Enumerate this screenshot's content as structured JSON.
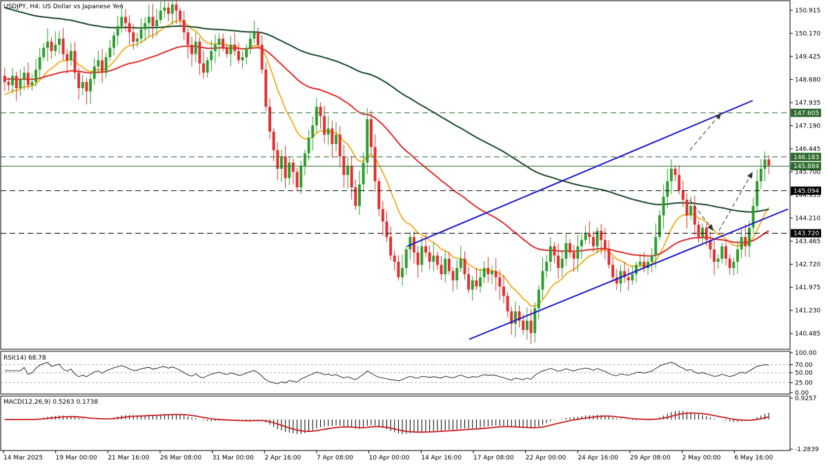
{
  "header": {
    "main_label": "USDJPY, H4:  US Dollar vs Japanese Yen",
    "rsi_label": "RSI(14) 68.78",
    "macd_label": "MACD(12,26,9) 0.5263 0.1738"
  },
  "colors": {
    "bull": "#2e9e2e",
    "bear": "#e03030",
    "ema_fast": "#f4a300",
    "ema_mid": "#e03030",
    "ema_slow": "#1e4d2b",
    "channel": "#1a1acc",
    "hline": "#2e6b2e",
    "tag_bg": "#2e6b2e",
    "tag_dark": "#000000",
    "arrow": "#333333",
    "macd_signal": "#cc2020"
  },
  "chart_data": [
    {
      "type": "candlestick",
      "symbol": "USDJPY",
      "timeframe": "H4",
      "title": "USDJPY, H4:  US Dollar vs Japanese Yen",
      "ylim": [
        140.0,
        151.2
      ],
      "y_ticks": [
        "150.915",
        "150.170",
        "149.425",
        "148.680",
        "147.935",
        "147.190",
        "146.445",
        "145.700",
        "144.955",
        "144.210",
        "143.465",
        "142.720",
        "141.975",
        "141.230",
        "140.485"
      ],
      "x_ticks": [
        "14 Mar 2025",
        "19 Mar 00:00",
        "21 Mar 16:00",
        "26 Mar 08:00",
        "31 Mar 00:00",
        "2 Apr 16:00",
        "7 Apr 08:00",
        "10 Apr 00:00",
        "14 Apr 16:00",
        "17 Apr 08:00",
        "22 Apr 00:00",
        "24 Apr 16:00",
        "29 Apr 08:00",
        "2 May 00:00",
        "6 May 16:00"
      ],
      "series_close": [
        148.6,
        148.5,
        148.8,
        148.4,
        148.7,
        148.9,
        148.5,
        148.6,
        149.0,
        149.4,
        149.7,
        149.9,
        149.6,
        149.8,
        150.0,
        149.5,
        149.3,
        149.6,
        148.9,
        148.4,
        148.6,
        148.3,
        148.7,
        149.1,
        149.3,
        148.9,
        149.4,
        149.7,
        150.1,
        150.4,
        150.7,
        150.5,
        150.2,
        149.9,
        150.0,
        150.3,
        150.5,
        150.7,
        150.4,
        150.6,
        150.9,
        151.0,
        150.8,
        151.1,
        150.9,
        150.6,
        150.2,
        149.8,
        149.5,
        149.9,
        149.2,
        148.9,
        149.3,
        149.6,
        149.8,
        150.0,
        149.7,
        149.5,
        149.8,
        149.6,
        149.3,
        149.4,
        149.7,
        150.0,
        150.2,
        149.8,
        149.0,
        147.8,
        147.0,
        146.4,
        145.8,
        146.2,
        145.5,
        146.0,
        145.7,
        145.2,
        145.9,
        146.3,
        146.8,
        147.2,
        147.8,
        147.5,
        146.9,
        147.1,
        146.6,
        146.9,
        146.2,
        145.6,
        145.9,
        145.2,
        144.6,
        145.3,
        146.0,
        147.4,
        146.5,
        145.4,
        144.5,
        144.1,
        143.6,
        143.0,
        142.8,
        142.3,
        142.6,
        143.2,
        143.6,
        143.1,
        142.7,
        143.3,
        143.1,
        142.8,
        143.0,
        142.7,
        142.4,
        142.9,
        142.5,
        142.2,
        142.6,
        142.9,
        142.4,
        141.9,
        142.2,
        142.0,
        142.3,
        142.6,
        142.4,
        142.5,
        142.3,
        142.0,
        141.7,
        141.2,
        140.8,
        141.2,
        140.9,
        140.6,
        140.9,
        140.5,
        141.3,
        141.9,
        142.5,
        142.8,
        143.3,
        143.0,
        142.6,
        142.9,
        143.4,
        143.1,
        142.9,
        143.3,
        143.5,
        143.7,
        143.6,
        143.3,
        143.8,
        143.5,
        143.2,
        142.7,
        142.3,
        142.1,
        142.5,
        142.3,
        142.2,
        142.4,
        142.7,
        142.8,
        142.6,
        142.8,
        143.0,
        143.6,
        144.3,
        144.9,
        145.4,
        145.8,
        145.6,
        145.1,
        144.8,
        144.3,
        144.6,
        144.0,
        143.6,
        143.9,
        143.5,
        143.2,
        142.8,
        142.9,
        143.3,
        142.9,
        142.6,
        142.8,
        143.2,
        143.6,
        143.3,
        143.9,
        144.6,
        145.4,
        145.8,
        146.1,
        145.9
      ]
    },
    {
      "type": "line",
      "title": "RSI(14) 68.78",
      "ylim": [
        0,
        100
      ],
      "y_ticks": [
        "100.00",
        "70.00",
        "50.00",
        "25.00",
        "0.00"
      ],
      "last": 68.78
    },
    {
      "type": "bar+line",
      "title": "MACD(12,26,9) 0.5263 0.1738",
      "ylim": [
        -1.2839,
        0.9257
      ],
      "y_ticks": [
        "0.9257",
        "-1.2839"
      ],
      "macd": 0.5263,
      "signal": 0.1738
    }
  ],
  "levels": [
    {
      "price": 147.605,
      "label": "147.605",
      "style": "dashed",
      "tag": "green"
    },
    {
      "price": 146.183,
      "label": "146.183",
      "style": "dashed",
      "tag": "green"
    },
    {
      "price": 145.884,
      "label": "145.884",
      "style": "solid",
      "tag": "green"
    },
    {
      "price": 145.094,
      "label": "145.094",
      "style": "dashed",
      "tag": "dark"
    },
    {
      "price": 143.72,
      "label": "143.720",
      "style": "dashed",
      "tag": "dark"
    }
  ],
  "channel": {
    "upper": {
      "from": [
        0.515,
        143.3
      ],
      "to": [
        0.955,
        148.0
      ]
    },
    "lower": {
      "from": [
        0.594,
        140.3
      ],
      "to": [
        1.0,
        144.5
      ]
    }
  },
  "arrows": [
    {
      "from": [
        0.875,
        146.4
      ],
      "to": [
        0.915,
        147.6
      ]
    },
    {
      "from": [
        0.875,
        144.8
      ],
      "to": [
        0.905,
        143.8
      ]
    },
    {
      "from": [
        0.912,
        143.8
      ],
      "to": [
        0.955,
        145.7
      ]
    }
  ]
}
